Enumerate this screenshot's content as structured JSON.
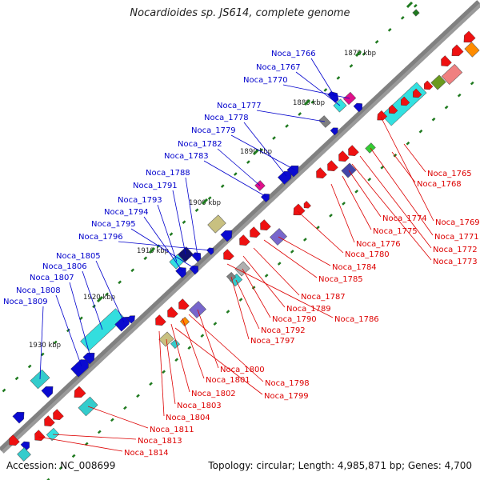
{
  "title": "Nocardioides sp. JS614, complete genome",
  "accession_text": "Accession: NC_008699",
  "stats_text": "Topology: circular; Length: 4,985,871 bp; Genes: 4,700",
  "colors": {
    "backbone": "#808080",
    "tick": "#1f7a1f",
    "plus_label": "#0000cc",
    "minus_label": "#dd0000"
  },
  "kbp_markers": [
    "1870 kbp",
    "1880 kbp",
    "1890 kbp",
    "1900 kbp",
    "1910 kbp",
    "1920 kbp",
    "1930 kbp"
  ],
  "plus_genes": [
    "Noca_1766",
    "Noca_1767",
    "Noca_1770",
    "Noca_1777",
    "Noca_1778",
    "Noca_1779",
    "Noca_1782",
    "Noca_1783",
    "Noca_1788",
    "Noca_1791",
    "Noca_1793",
    "Noca_1794",
    "Noca_1795",
    "Noca_1796",
    "Noca_1805",
    "Noca_1806",
    "Noca_1807",
    "Noca_1808",
    "Noca_1809"
  ],
  "minus_genes": [
    "Noca_1765",
    "Noca_1768",
    "Noca_1769",
    "Noca_1771",
    "Noca_1772",
    "Noca_1773",
    "Noca_1774",
    "Noca_1775",
    "Noca_1776",
    "Noca_1780",
    "Noca_1784",
    "Noca_1785",
    "Noca_1787",
    "Noca_1789",
    "Noca_1786",
    "Noca_1790",
    "Noca_1792",
    "Noca_1797",
    "Noca_1800",
    "Noca_1798",
    "Noca_1801",
    "Noca_1799",
    "Noca_1802",
    "Noca_1803",
    "Noca_1804",
    "Noca_1811",
    "Noca_1813",
    "Noca_1814"
  ]
}
